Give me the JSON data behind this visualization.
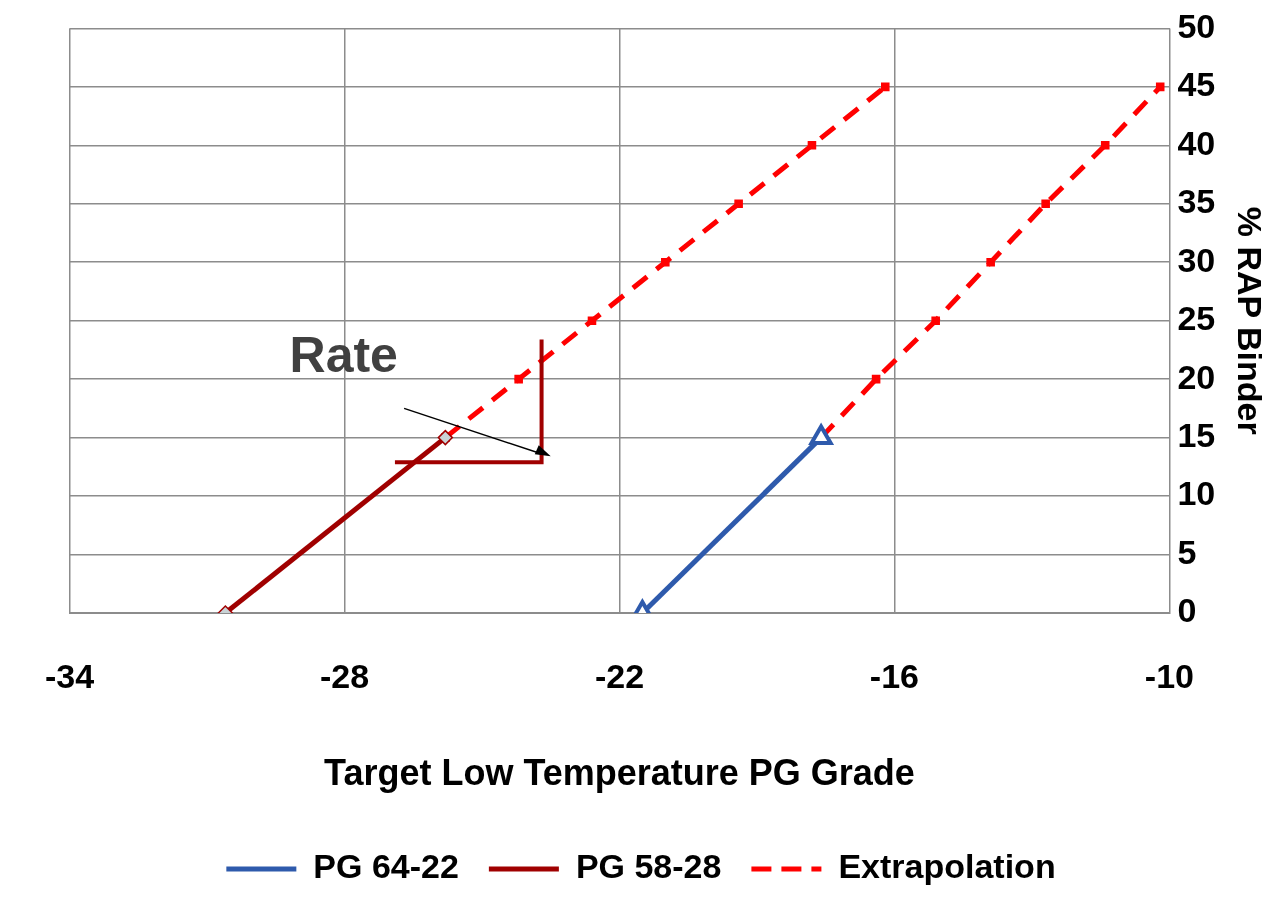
{
  "chart_data": {
    "type": "line",
    "xlabel": "Target Low Temperature PG Grade",
    "ylabel": "% RAP Binder",
    "xlim": [
      -34,
      -10
    ],
    "xticks": [
      -34,
      -28,
      -22,
      -16,
      -10
    ],
    "ylim": [
      0,
      50
    ],
    "yticks": [
      0,
      5,
      10,
      15,
      20,
      25,
      30,
      35,
      40,
      45,
      50
    ],
    "grid": true,
    "legend": "bottom",
    "annotations": [
      "Rate"
    ],
    "series": [
      {
        "name": "PG 64-22",
        "color": "#2e5aac",
        "x": [
          -21.5,
          -17.6
        ],
        "values": [
          0,
          15
        ],
        "marker": "triangle",
        "line_style": "solid"
      },
      {
        "name": "PG 58-28",
        "color": "#a00000",
        "x": [
          -30.6,
          -25.8
        ],
        "values": [
          0,
          15
        ],
        "marker": "diamond",
        "line_style": "solid"
      },
      {
        "name": "Extrapolation",
        "color": "#ff0000",
        "x": [
          -25.8,
          -24.2,
          -22.6,
          -21.0,
          -19.4,
          -17.8,
          -16.2
        ],
        "values": [
          15,
          20,
          25,
          30,
          35,
          40,
          45
        ],
        "marker": "square",
        "line_style": "dashed"
      },
      {
        "color": "#ff0000",
        "x": [
          -17.6,
          -16.4,
          -15.1,
          -13.9,
          -12.7,
          -11.4,
          -10.2
        ],
        "values": [
          15,
          20,
          25,
          30,
          35,
          40,
          45
        ],
        "marker": "square",
        "line_style": "dashed"
      }
    ]
  }
}
